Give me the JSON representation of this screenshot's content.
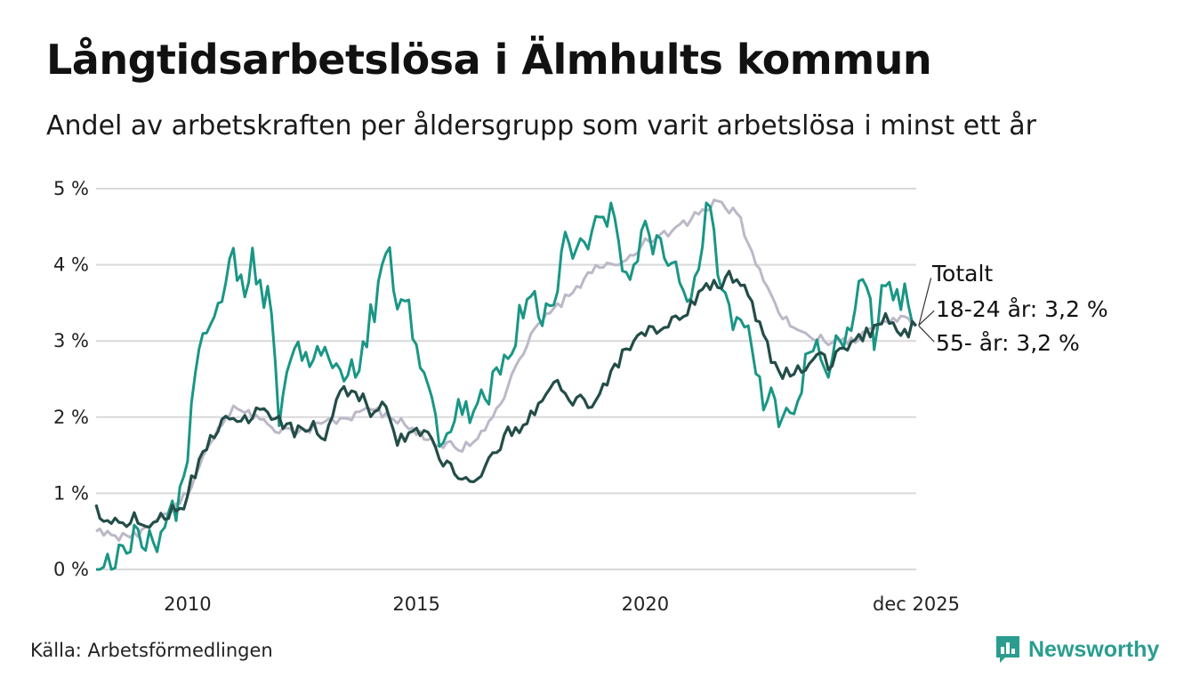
{
  "title": "Långtidsarbetslösa i Älmhults kommun",
  "subtitle": "Andel av arbetskraften per åldersgrupp som varit arbetslösa i minst ett år",
  "source": "Källa: Arbetsförmedlingen",
  "brand": "Newsworthy",
  "colors": {
    "total": "#bcb8c8",
    "age_18_24": "#1a9685",
    "age_55": "#234d48",
    "brand": "#2a9d8f",
    "grid": "#d9d9d9"
  },
  "chart_data": {
    "type": "line",
    "title": "Långtidsarbetslösa i Älmhults kommun",
    "xlabel": "",
    "ylabel": "",
    "x_start": 2008.0,
    "x_step_months": 1,
    "xlim": [
      2008.0,
      2025.92
    ],
    "ylim": [
      0,
      5
    ],
    "y_ticks": [
      0,
      1,
      2,
      3,
      4,
      5
    ],
    "y_tick_labels": [
      "0 %",
      "1 %",
      "2 %",
      "3 %",
      "4 %",
      "5 %"
    ],
    "x_ticks": [
      2010,
      2015,
      2020,
      2025.92
    ],
    "x_tick_labels": [
      "2010",
      "2015",
      "2020",
      "dec 2025"
    ],
    "grid": true,
    "legend": "end-of-line labels",
    "series": [
      {
        "key": "total",
        "name": "Totalt",
        "end_label": "Totalt",
        "anchors": [
          [
            2008.0,
            0.5
          ],
          [
            2008.5,
            0.4
          ],
          [
            2009.0,
            0.5
          ],
          [
            2009.5,
            0.7
          ],
          [
            2010.0,
            1.0
          ],
          [
            2010.5,
            1.7
          ],
          [
            2011.0,
            2.1
          ],
          [
            2011.5,
            2.0
          ],
          [
            2012.0,
            1.8
          ],
          [
            2012.5,
            1.8
          ],
          [
            2013.0,
            1.9
          ],
          [
            2013.5,
            2.0
          ],
          [
            2014.0,
            2.1
          ],
          [
            2014.5,
            2.0
          ],
          [
            2015.0,
            1.8
          ],
          [
            2015.5,
            1.65
          ],
          [
            2016.0,
            1.6
          ],
          [
            2016.5,
            1.8
          ],
          [
            2017.0,
            2.4
          ],
          [
            2017.5,
            3.1
          ],
          [
            2018.0,
            3.4
          ],
          [
            2018.5,
            3.7
          ],
          [
            2019.0,
            4.0
          ],
          [
            2019.5,
            4.0
          ],
          [
            2020.0,
            4.3
          ],
          [
            2020.5,
            4.4
          ],
          [
            2021.0,
            4.6
          ],
          [
            2021.5,
            4.8
          ],
          [
            2022.0,
            4.7
          ],
          [
            2022.5,
            3.9
          ],
          [
            2023.0,
            3.3
          ],
          [
            2023.5,
            3.1
          ],
          [
            2024.0,
            3.0
          ],
          [
            2024.5,
            3.0
          ],
          [
            2025.0,
            3.2
          ],
          [
            2025.5,
            3.3
          ],
          [
            2025.92,
            3.2
          ]
        ]
      },
      {
        "key": "age_18_24",
        "name": "18-24 år",
        "end_label": "18-24 år: 3,2 %",
        "anchors": [
          [
            2008.0,
            0.0
          ],
          [
            2008.3,
            0.1
          ],
          [
            2008.6,
            0.3
          ],
          [
            2009.0,
            0.4
          ],
          [
            2009.4,
            0.4
          ],
          [
            2009.8,
            0.9
          ],
          [
            2010.0,
            1.5
          ],
          [
            2010.2,
            2.9
          ],
          [
            2010.5,
            3.3
          ],
          [
            2010.8,
            3.8
          ],
          [
            2011.0,
            4.0
          ],
          [
            2011.2,
            3.7
          ],
          [
            2011.4,
            4.1
          ],
          [
            2011.6,
            3.6
          ],
          [
            2011.8,
            3.6
          ],
          [
            2012.0,
            2.1
          ],
          [
            2012.3,
            3.0
          ],
          [
            2012.6,
            2.8
          ],
          [
            2012.9,
            3.0
          ],
          [
            2013.2,
            2.7
          ],
          [
            2013.5,
            2.6
          ],
          [
            2013.8,
            2.8
          ],
          [
            2014.0,
            3.3
          ],
          [
            2014.2,
            3.7
          ],
          [
            2014.4,
            4.2
          ],
          [
            2014.6,
            3.4
          ],
          [
            2014.8,
            3.4
          ],
          [
            2015.0,
            2.9
          ],
          [
            2015.3,
            2.5
          ],
          [
            2015.5,
            1.7
          ],
          [
            2015.8,
            1.9
          ],
          [
            2016.0,
            2.1
          ],
          [
            2016.3,
            2.0
          ],
          [
            2016.6,
            2.4
          ],
          [
            2016.8,
            2.6
          ],
          [
            2017.0,
            2.9
          ],
          [
            2017.2,
            3.2
          ],
          [
            2017.5,
            3.6
          ],
          [
            2017.8,
            3.3
          ],
          [
            2018.0,
            3.5
          ],
          [
            2018.2,
            4.3
          ],
          [
            2018.5,
            4.1
          ],
          [
            2018.8,
            4.3
          ],
          [
            2019.0,
            4.7
          ],
          [
            2019.3,
            4.7
          ],
          [
            2019.5,
            3.8
          ],
          [
            2019.8,
            4.1
          ],
          [
            2020.0,
            4.4
          ],
          [
            2020.3,
            4.2
          ],
          [
            2020.6,
            3.9
          ],
          [
            2020.9,
            3.7
          ],
          [
            2021.0,
            3.5
          ],
          [
            2021.2,
            3.8
          ],
          [
            2021.4,
            5.05
          ],
          [
            2021.6,
            3.7
          ],
          [
            2021.8,
            3.5
          ],
          [
            2022.0,
            3.1
          ],
          [
            2022.2,
            3.2
          ],
          [
            2022.4,
            2.8
          ],
          [
            2022.6,
            2.1
          ],
          [
            2022.8,
            2.3
          ],
          [
            2023.0,
            1.8
          ],
          [
            2023.2,
            2.1
          ],
          [
            2023.4,
            2.5
          ],
          [
            2023.6,
            2.9
          ],
          [
            2023.8,
            2.8
          ],
          [
            2024.0,
            2.7
          ],
          [
            2024.2,
            2.9
          ],
          [
            2024.4,
            3.0
          ],
          [
            2024.6,
            3.5
          ],
          [
            2024.8,
            3.8
          ],
          [
            2025.0,
            3.1
          ],
          [
            2025.2,
            3.9
          ],
          [
            2025.4,
            3.5
          ],
          [
            2025.6,
            3.6
          ],
          [
            2025.8,
            3.4
          ],
          [
            2025.92,
            3.2
          ]
        ]
      },
      {
        "key": "age_55",
        "name": "55- år",
        "end_label": "55- år: 3,2 %",
        "anchors": [
          [
            2008.0,
            0.85
          ],
          [
            2008.2,
            0.6
          ],
          [
            2008.5,
            0.6
          ],
          [
            2008.8,
            0.7
          ],
          [
            2009.2,
            0.6
          ],
          [
            2009.5,
            0.7
          ],
          [
            2009.9,
            0.8
          ],
          [
            2010.0,
            1.0
          ],
          [
            2010.3,
            1.5
          ],
          [
            2010.6,
            1.8
          ],
          [
            2011.0,
            2.0
          ],
          [
            2011.3,
            2.0
          ],
          [
            2011.6,
            2.1
          ],
          [
            2011.8,
            2.0
          ],
          [
            2012.0,
            2.0
          ],
          [
            2012.3,
            1.8
          ],
          [
            2012.6,
            1.9
          ],
          [
            2013.0,
            1.8
          ],
          [
            2013.3,
            2.3
          ],
          [
            2013.6,
            2.4
          ],
          [
            2014.0,
            2.1
          ],
          [
            2014.3,
            2.1
          ],
          [
            2014.6,
            1.7
          ],
          [
            2015.0,
            1.8
          ],
          [
            2015.3,
            1.8
          ],
          [
            2015.6,
            1.4
          ],
          [
            2016.0,
            1.2
          ],
          [
            2016.2,
            1.1
          ],
          [
            2016.5,
            1.4
          ],
          [
            2016.8,
            1.6
          ],
          [
            2017.0,
            1.8
          ],
          [
            2017.3,
            1.9
          ],
          [
            2017.6,
            2.1
          ],
          [
            2018.0,
            2.5
          ],
          [
            2018.3,
            2.2
          ],
          [
            2018.6,
            2.3
          ],
          [
            2018.9,
            2.1
          ],
          [
            2019.2,
            2.5
          ],
          [
            2019.5,
            2.8
          ],
          [
            2019.8,
            3.0
          ],
          [
            2020.0,
            3.1
          ],
          [
            2020.3,
            3.2
          ],
          [
            2020.6,
            3.3
          ],
          [
            2020.9,
            3.3
          ],
          [
            2021.2,
            3.7
          ],
          [
            2021.5,
            3.7
          ],
          [
            2021.8,
            3.8
          ],
          [
            2022.0,
            3.9
          ],
          [
            2022.3,
            3.5
          ],
          [
            2022.6,
            3.0
          ],
          [
            2022.9,
            2.6
          ],
          [
            2023.2,
            2.6
          ],
          [
            2023.5,
            2.7
          ],
          [
            2023.8,
            2.8
          ],
          [
            2024.0,
            2.7
          ],
          [
            2024.3,
            2.9
          ],
          [
            2024.6,
            3.0
          ],
          [
            2024.9,
            3.1
          ],
          [
            2025.0,
            3.2
          ],
          [
            2025.2,
            3.3
          ],
          [
            2025.5,
            3.2
          ],
          [
            2025.7,
            3.1
          ],
          [
            2025.92,
            3.2
          ]
        ]
      }
    ]
  }
}
